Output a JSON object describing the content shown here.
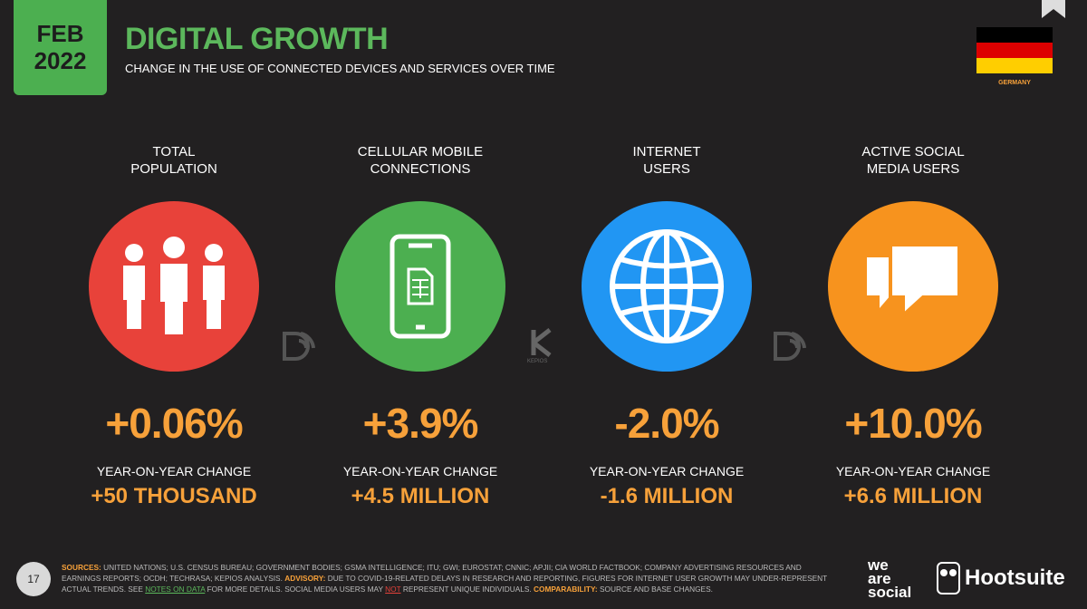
{
  "header": {
    "month": "FEB",
    "year": "2022",
    "title": "DIGITAL GROWTH",
    "subtitle": "CHANGE IN THE USE OF CONNECTED DEVICES AND SERVICES OVER TIME",
    "country": "GERMANY"
  },
  "metrics": [
    {
      "label": [
        "TOTAL",
        "POPULATION"
      ],
      "change": "+0.06%",
      "change_label": "YEAR-ON-YEAR CHANGE",
      "absolute": "+50 THOUSAND"
    },
    {
      "label": [
        "CELLULAR MOBILE",
        "CONNECTIONS"
      ],
      "change": "+3.9%",
      "change_label": "YEAR-ON-YEAR CHANGE",
      "absolute": "+4.5 MILLION"
    },
    {
      "label": [
        "INTERNET",
        "USERS"
      ],
      "change": "-2.0%",
      "change_label": "YEAR-ON-YEAR CHANGE",
      "absolute": "-1.6 MILLION"
    },
    {
      "label": [
        "ACTIVE SOCIAL",
        "MEDIA USERS"
      ],
      "change": "+10.0%",
      "change_label": "YEAR-ON-YEAR CHANGE",
      "absolute": "+6.6 MILLION"
    }
  ],
  "watermark": "KEPIOS",
  "footer": {
    "page": "17",
    "segments": [
      "SOURCES:",
      " UNITED NATIONS; U.S. CENSUS BUREAU; GOVERNMENT BODIES; GSMA INTELLIGENCE; ITU; GWI; EUROSTAT; CNNIC; APJII; CIA WORLD FACTBOOK; COMPANY ADVERTISING RESOURCES AND EARNINGS REPORTS; OCDH; TECHRASA; KEPIOS ANALYSIS. ",
      "ADVISORY:",
      " DUE TO COVID-19-RELATED DELAYS IN RESEARCH AND REPORTING, FIGURES FOR INTERNET USER GROWTH MAY UNDER-REPRESENT ACTUAL TRENDS. SEE ",
      "NOTES ON DATA",
      " FOR MORE DETAILS. SOCIAL MEDIA USERS MAY ",
      "NOT",
      " REPRESENT UNIQUE INDIVIDUALS. ",
      "COMPARABILITY:",
      " SOURCE AND BASE CHANGES."
    ],
    "brand1": [
      "we",
      "are",
      "social"
    ],
    "brand2": "Hootsuite"
  }
}
